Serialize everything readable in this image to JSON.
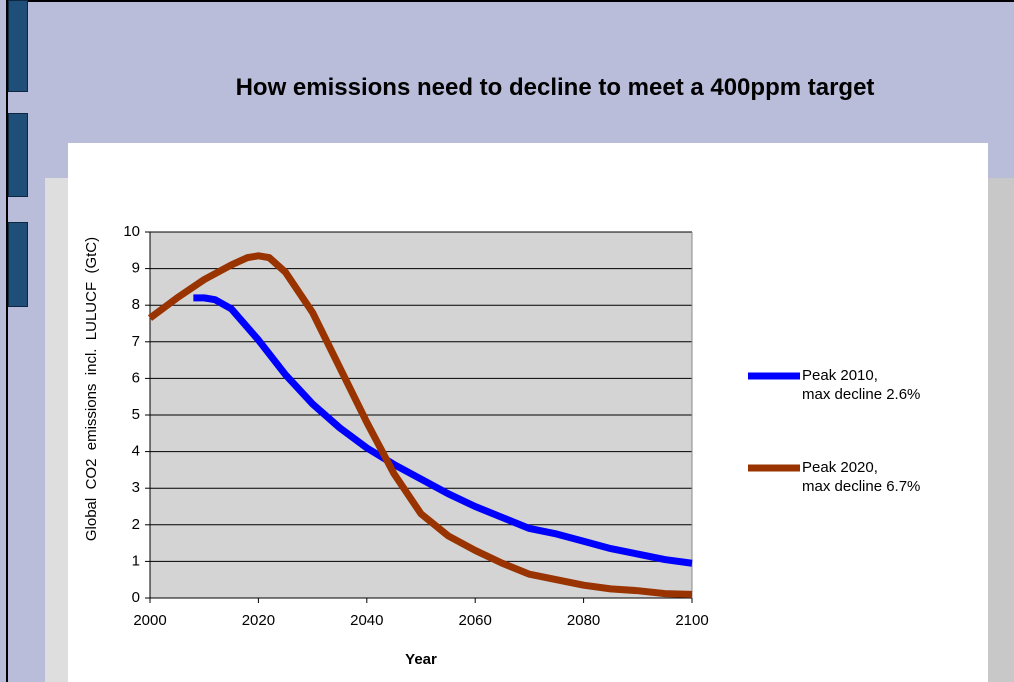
{
  "chart_data": {
    "type": "line",
    "title": "How emissions need to decline to meet a 400ppm target",
    "xlabel": "Year",
    "ylabel": "Global  CO2  emissions  incl.  LULUCF  (GtC)",
    "xlim": [
      2000,
      2100
    ],
    "xticks": [
      2000,
      2020,
      2040,
      2060,
      2080,
      2100
    ],
    "ylim": [
      0,
      10
    ],
    "yticks": [
      0,
      1,
      2,
      3,
      4,
      5,
      6,
      7,
      8,
      9,
      10
    ],
    "grid": true,
    "legend": "right",
    "series": [
      {
        "name": "Peak 2010,\nmax decline 2.6%",
        "color": "#0000ff",
        "x": [
          2008,
          2010,
          2012,
          2015,
          2020,
          2025,
          2030,
          2035,
          2040,
          2045,
          2050,
          2055,
          2060,
          2065,
          2070,
          2075,
          2080,
          2085,
          2090,
          2095,
          2100
        ],
        "values": [
          8.2,
          8.2,
          8.15,
          7.9,
          7.05,
          6.1,
          5.3,
          4.65,
          4.1,
          3.65,
          3.25,
          2.85,
          2.5,
          2.2,
          1.9,
          1.75,
          1.55,
          1.35,
          1.2,
          1.05,
          0.95
        ]
      },
      {
        "name": "Peak 2020,\nmax decline 6.7%",
        "color": "#993300",
        "x": [
          2000,
          2005,
          2010,
          2015,
          2018,
          2020,
          2022,
          2025,
          2030,
          2035,
          2040,
          2045,
          2050,
          2055,
          2060,
          2065,
          2070,
          2075,
          2080,
          2085,
          2090,
          2095,
          2100
        ],
        "values": [
          7.65,
          8.2,
          8.7,
          9.1,
          9.3,
          9.35,
          9.3,
          8.9,
          7.8,
          6.3,
          4.8,
          3.4,
          2.3,
          1.7,
          1.3,
          0.95,
          0.65,
          0.5,
          0.35,
          0.25,
          0.2,
          0.12,
          0.1
        ]
      }
    ]
  }
}
